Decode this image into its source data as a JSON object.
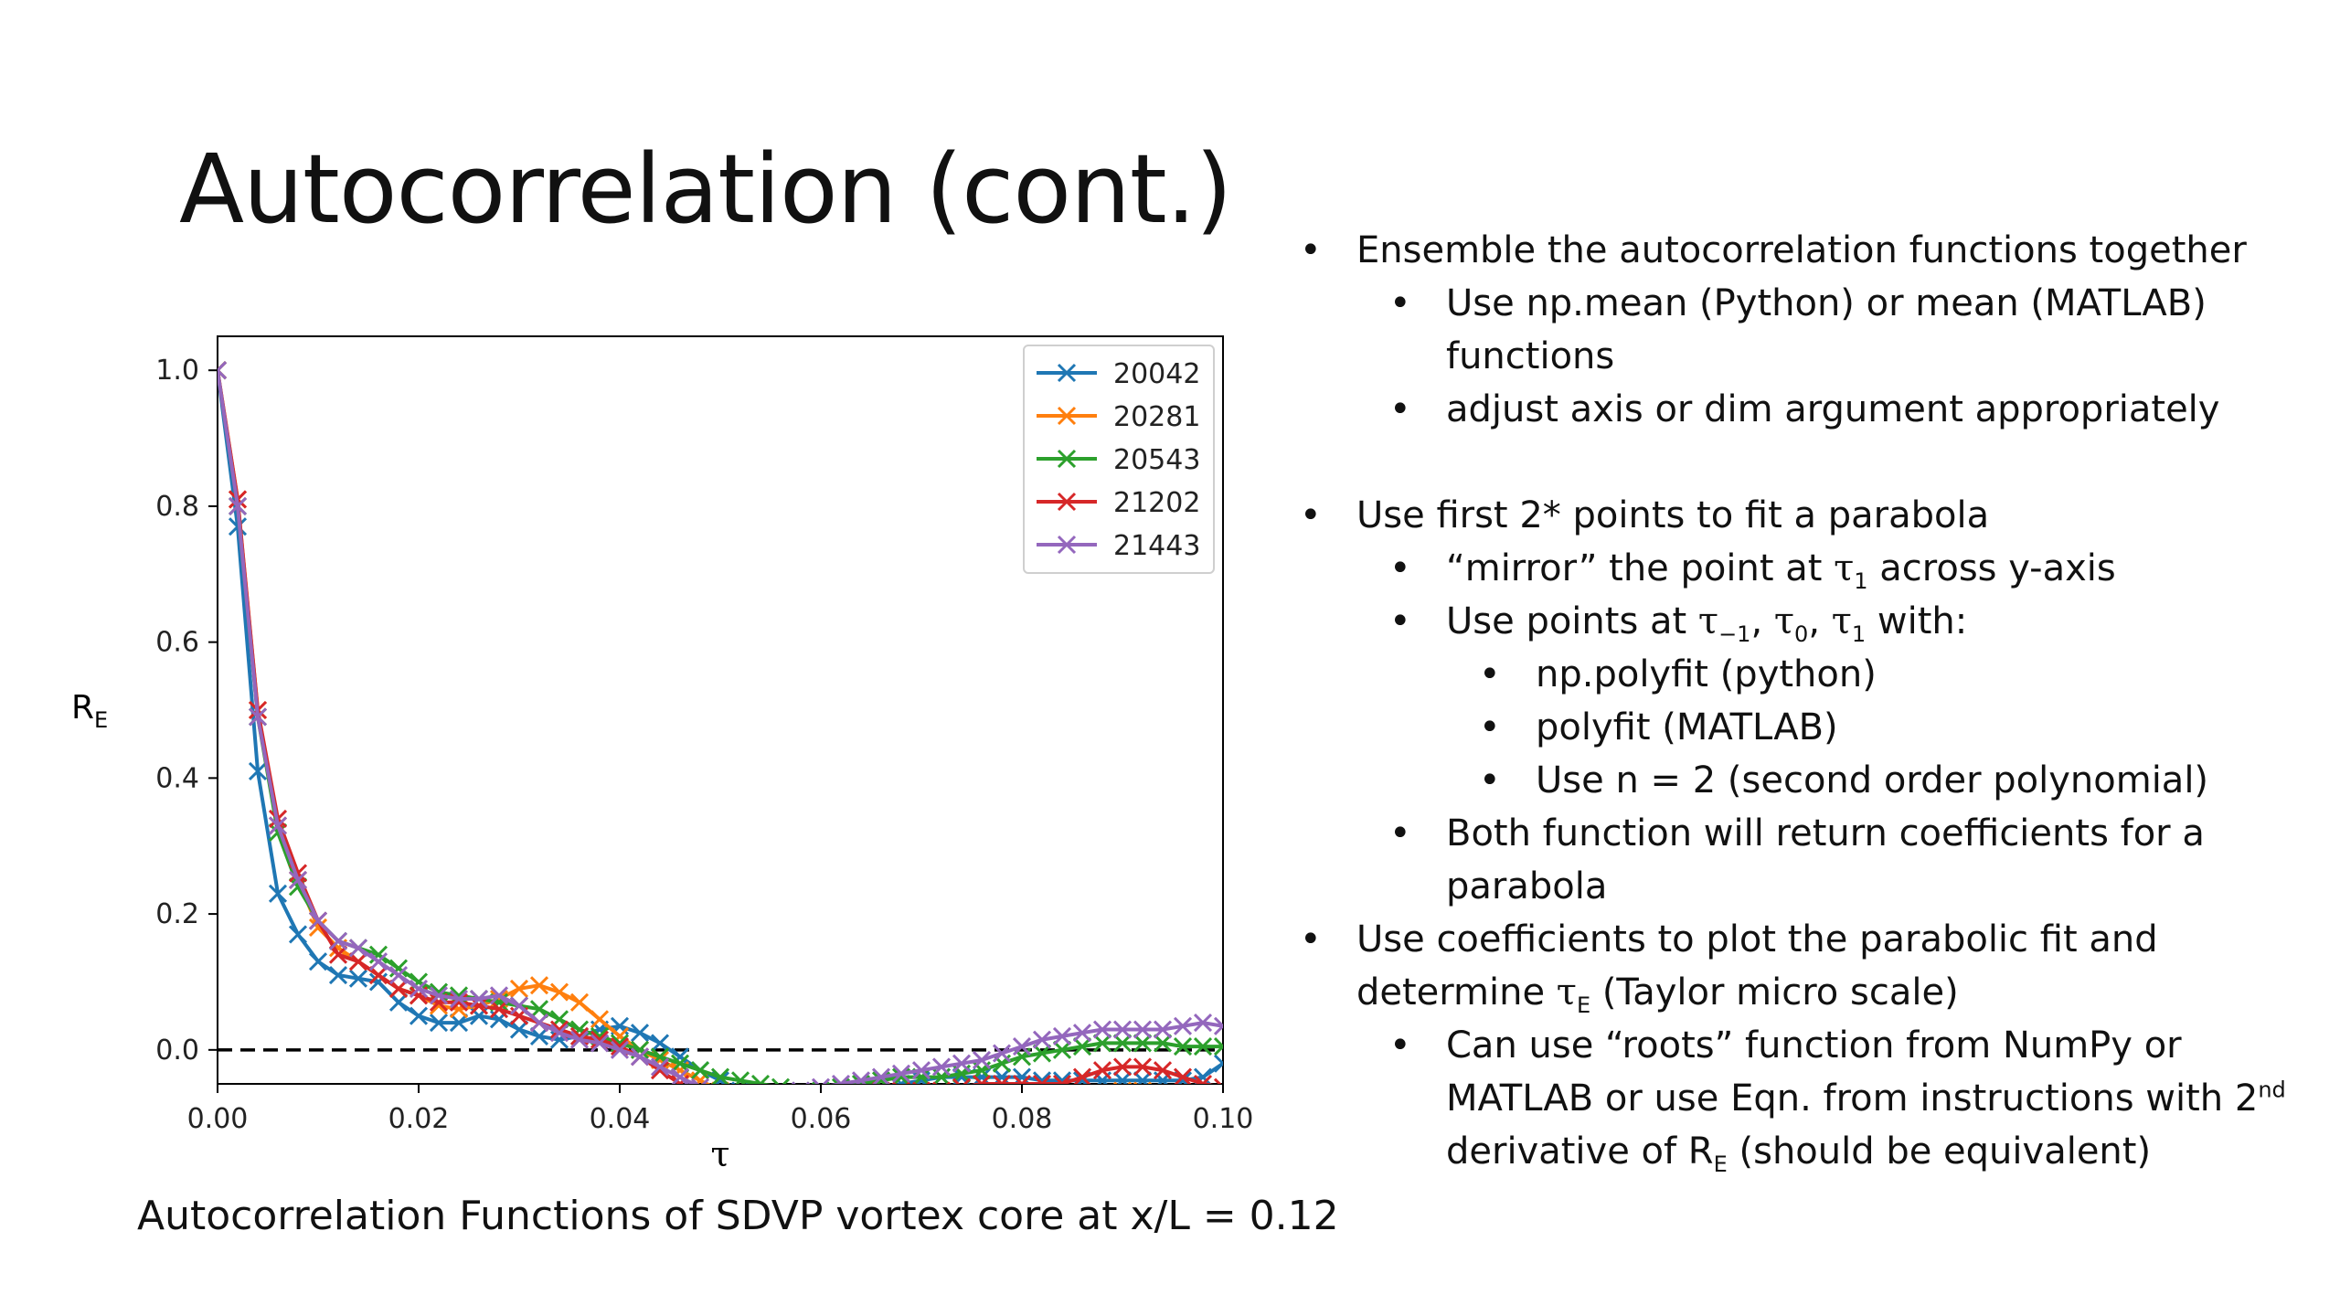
{
  "slide": {
    "title": "Autocorrelation (cont.)",
    "caption": "Autocorrelation Functions of SDVP vortex core at x/L = 0.12"
  },
  "bullets": {
    "b1": "Ensemble the autocorrelation functions together",
    "b1a": "Use np.mean (Python) or mean (MATLAB) functions",
    "b1b": "adjust axis or dim argument appropriately",
    "b2": "Use first 2* points to fit a parabola",
    "b2a_pre": "“mirror” the point at ",
    "b2a_tau": "τ",
    "b2a_sub": "1",
    "b2a_post": " across y-axis",
    "b2b_pre": "Use points at ",
    "b2b_tau1": "τ",
    "b2b_sub1": "−1",
    "b2b_sep1": ", ",
    "b2b_tau2": "τ",
    "b2b_sub2": "0",
    "b2b_sep2": ", ",
    "b2b_tau3": "τ",
    "b2b_sub3": "1",
    "b2b_post": "  with:",
    "b2b_i": "np.polyfit (python)",
    "b2b_ii": "polyfit (MATLAB)",
    "b2b_iii": "Use n = 2 (second order polynomial)",
    "b2c": "Both function will return  coefficients for a parabola",
    "b3_pre": "Use coefficients to plot the parabolic fit and determine ",
    "b3_tau": "τ",
    "b3_sub": "E",
    "b3_post": " (Taylor micro scale)",
    "b3a_pre": "Can use “roots” function from NumPy or MATLAB or use Eqn. from instructions with ",
    "b3a_sup_base": "2",
    "b3a_sup": "nd",
    "b3a_mid": " derivative of R",
    "b3a_sub": "E",
    "b3a_post": " (should be equivalent)"
  },
  "chart_data": {
    "type": "line",
    "xlabel": "τ",
    "ylabel": "R",
    "ylabel_sub": "E",
    "xlim": [
      0.0,
      0.1
    ],
    "ylim": [
      -0.05,
      1.05
    ],
    "xticks": [
      0.0,
      0.02,
      0.04,
      0.06,
      0.08,
      0.1
    ],
    "xtick_labels": [
      "0.00",
      "0.02",
      "0.04",
      "0.06",
      "0.08",
      "0.10"
    ],
    "yticks": [
      0.0,
      0.2,
      0.4,
      0.6,
      0.8,
      1.0
    ],
    "ytick_labels": [
      "0.0",
      "0.2",
      "0.4",
      "0.6",
      "0.8",
      "1.0"
    ],
    "grid": false,
    "legend_position": "top-right",
    "reference_line": {
      "y": 0.0,
      "style": "dashed",
      "color": "#000000"
    },
    "marker_step": 0.002,
    "series": [
      {
        "name": "20042",
        "color": "#1f77b4",
        "points": [
          [
            0.0,
            1.0
          ],
          [
            0.002,
            0.77
          ],
          [
            0.004,
            0.41
          ],
          [
            0.006,
            0.23
          ],
          [
            0.008,
            0.17
          ],
          [
            0.01,
            0.13
          ],
          [
            0.012,
            0.11
          ],
          [
            0.014,
            0.105
          ],
          [
            0.016,
            0.1
          ],
          [
            0.018,
            0.07
          ],
          [
            0.02,
            0.05
          ],
          [
            0.022,
            0.04
          ],
          [
            0.024,
            0.04
          ],
          [
            0.026,
            0.05
          ],
          [
            0.028,
            0.045
          ],
          [
            0.03,
            0.03
          ],
          [
            0.032,
            0.02
          ],
          [
            0.034,
            0.015
          ],
          [
            0.036,
            0.02
          ],
          [
            0.038,
            0.03
          ],
          [
            0.04,
            0.035
          ],
          [
            0.042,
            0.025
          ],
          [
            0.044,
            0.01
          ],
          [
            0.046,
            -0.01
          ],
          [
            0.048,
            -0.03
          ],
          [
            0.05,
            -0.045
          ],
          [
            0.052,
            -0.06
          ],
          [
            0.054,
            -0.07
          ],
          [
            0.056,
            -0.075
          ],
          [
            0.058,
            -0.08
          ],
          [
            0.06,
            -0.08
          ],
          [
            0.062,
            -0.075
          ],
          [
            0.064,
            -0.07
          ],
          [
            0.066,
            -0.06
          ],
          [
            0.068,
            -0.05
          ],
          [
            0.07,
            -0.045
          ],
          [
            0.072,
            -0.04
          ],
          [
            0.074,
            -0.04
          ],
          [
            0.076,
            -0.04
          ],
          [
            0.078,
            -0.04
          ],
          [
            0.08,
            -0.04
          ],
          [
            0.082,
            -0.045
          ],
          [
            0.084,
            -0.045
          ],
          [
            0.086,
            -0.045
          ],
          [
            0.088,
            -0.045
          ],
          [
            0.09,
            -0.045
          ],
          [
            0.092,
            -0.045
          ],
          [
            0.094,
            -0.045
          ],
          [
            0.096,
            -0.045
          ],
          [
            0.098,
            -0.04
          ],
          [
            0.1,
            -0.02
          ]
        ]
      },
      {
        "name": "20281",
        "color": "#ff7f0e",
        "points": [
          [
            0.0,
            1.0
          ],
          [
            0.002,
            0.81
          ],
          [
            0.004,
            0.5
          ],
          [
            0.006,
            0.33
          ],
          [
            0.008,
            0.25
          ],
          [
            0.01,
            0.18
          ],
          [
            0.012,
            0.15
          ],
          [
            0.014,
            0.13
          ],
          [
            0.016,
            0.11
          ],
          [
            0.018,
            0.09
          ],
          [
            0.02,
            0.08
          ],
          [
            0.022,
            0.065
          ],
          [
            0.024,
            0.06
          ],
          [
            0.026,
            0.065
          ],
          [
            0.028,
            0.075
          ],
          [
            0.03,
            0.09
          ],
          [
            0.032,
            0.095
          ],
          [
            0.034,
            0.085
          ],
          [
            0.036,
            0.07
          ],
          [
            0.038,
            0.045
          ],
          [
            0.04,
            0.02
          ],
          [
            0.042,
            0.0
          ],
          [
            0.044,
            -0.015
          ],
          [
            0.046,
            -0.03
          ],
          [
            0.048,
            -0.045
          ],
          [
            0.05,
            -0.06
          ],
          [
            0.052,
            -0.07
          ],
          [
            0.054,
            -0.075
          ],
          [
            0.056,
            -0.075
          ],
          [
            0.058,
            -0.08
          ],
          [
            0.06,
            -0.085
          ],
          [
            0.062,
            -0.09
          ],
          [
            0.064,
            -0.09
          ],
          [
            0.066,
            -0.085
          ],
          [
            0.068,
            -0.08
          ],
          [
            0.07,
            -0.08
          ],
          [
            0.072,
            -0.08
          ],
          [
            0.074,
            -0.08
          ],
          [
            0.076,
            -0.085
          ],
          [
            0.078,
            -0.09
          ],
          [
            0.08,
            -0.09
          ],
          [
            0.082,
            -0.085
          ],
          [
            0.084,
            -0.08
          ],
          [
            0.086,
            -0.07
          ],
          [
            0.088,
            -0.065
          ],
          [
            0.09,
            -0.06
          ],
          [
            0.092,
            -0.06
          ],
          [
            0.094,
            -0.065
          ],
          [
            0.096,
            -0.07
          ],
          [
            0.098,
            -0.07
          ],
          [
            0.1,
            -0.065
          ]
        ]
      },
      {
        "name": "20543",
        "color": "#2ca02c",
        "points": [
          [
            0.0,
            1.0
          ],
          [
            0.002,
            0.8
          ],
          [
            0.004,
            0.49
          ],
          [
            0.006,
            0.32
          ],
          [
            0.008,
            0.24
          ],
          [
            0.01,
            0.19
          ],
          [
            0.012,
            0.16
          ],
          [
            0.014,
            0.15
          ],
          [
            0.016,
            0.14
          ],
          [
            0.018,
            0.12
          ],
          [
            0.02,
            0.1
          ],
          [
            0.022,
            0.085
          ],
          [
            0.024,
            0.08
          ],
          [
            0.026,
            0.075
          ],
          [
            0.028,
            0.07
          ],
          [
            0.03,
            0.065
          ],
          [
            0.032,
            0.06
          ],
          [
            0.034,
            0.045
          ],
          [
            0.036,
            0.03
          ],
          [
            0.038,
            0.02
          ],
          [
            0.04,
            0.01
          ],
          [
            0.042,
            0.0
          ],
          [
            0.044,
            -0.01
          ],
          [
            0.046,
            -0.02
          ],
          [
            0.048,
            -0.03
          ],
          [
            0.05,
            -0.04
          ],
          [
            0.052,
            -0.045
          ],
          [
            0.054,
            -0.05
          ],
          [
            0.056,
            -0.055
          ],
          [
            0.058,
            -0.06
          ],
          [
            0.06,
            -0.06
          ],
          [
            0.062,
            -0.055
          ],
          [
            0.064,
            -0.05
          ],
          [
            0.066,
            -0.045
          ],
          [
            0.068,
            -0.04
          ],
          [
            0.07,
            -0.04
          ],
          [
            0.072,
            -0.04
          ],
          [
            0.074,
            -0.035
          ],
          [
            0.076,
            -0.03
          ],
          [
            0.078,
            -0.02
          ],
          [
            0.08,
            -0.01
          ],
          [
            0.082,
            -0.005
          ],
          [
            0.084,
            0.0
          ],
          [
            0.086,
            0.005
          ],
          [
            0.088,
            0.01
          ],
          [
            0.09,
            0.01
          ],
          [
            0.092,
            0.01
          ],
          [
            0.094,
            0.01
          ],
          [
            0.096,
            0.005
          ],
          [
            0.098,
            0.005
          ],
          [
            0.1,
            0.005
          ]
        ]
      },
      {
        "name": "21202",
        "color": "#d62728",
        "points": [
          [
            0.0,
            1.0
          ],
          [
            0.002,
            0.81
          ],
          [
            0.004,
            0.5
          ],
          [
            0.006,
            0.34
          ],
          [
            0.008,
            0.26
          ],
          [
            0.01,
            0.19
          ],
          [
            0.012,
            0.14
          ],
          [
            0.014,
            0.13
          ],
          [
            0.016,
            0.11
          ],
          [
            0.018,
            0.09
          ],
          [
            0.02,
            0.08
          ],
          [
            0.022,
            0.07
          ],
          [
            0.024,
            0.07
          ],
          [
            0.026,
            0.065
          ],
          [
            0.028,
            0.06
          ],
          [
            0.03,
            0.05
          ],
          [
            0.032,
            0.04
          ],
          [
            0.034,
            0.03
          ],
          [
            0.036,
            0.02
          ],
          [
            0.038,
            0.015
          ],
          [
            0.04,
            0.005
          ],
          [
            0.042,
            -0.01
          ],
          [
            0.044,
            -0.03
          ],
          [
            0.046,
            -0.05
          ],
          [
            0.048,
            -0.065
          ],
          [
            0.05,
            -0.07
          ],
          [
            0.052,
            -0.075
          ],
          [
            0.054,
            -0.075
          ],
          [
            0.056,
            -0.07
          ],
          [
            0.058,
            -0.07
          ],
          [
            0.06,
            -0.07
          ],
          [
            0.062,
            -0.07
          ],
          [
            0.064,
            -0.065
          ],
          [
            0.066,
            -0.06
          ],
          [
            0.068,
            -0.06
          ],
          [
            0.07,
            -0.06
          ],
          [
            0.072,
            -0.06
          ],
          [
            0.074,
            -0.055
          ],
          [
            0.076,
            -0.05
          ],
          [
            0.078,
            -0.05
          ],
          [
            0.08,
            -0.05
          ],
          [
            0.082,
            -0.05
          ],
          [
            0.084,
            -0.05
          ],
          [
            0.086,
            -0.04
          ],
          [
            0.088,
            -0.03
          ],
          [
            0.09,
            -0.025
          ],
          [
            0.092,
            -0.025
          ],
          [
            0.094,
            -0.03
          ],
          [
            0.096,
            -0.04
          ],
          [
            0.098,
            -0.05
          ],
          [
            0.1,
            -0.055
          ]
        ]
      },
      {
        "name": "21443",
        "color": "#9467bd",
        "points": [
          [
            0.0,
            1.0
          ],
          [
            0.002,
            0.8
          ],
          [
            0.004,
            0.49
          ],
          [
            0.006,
            0.33
          ],
          [
            0.008,
            0.25
          ],
          [
            0.01,
            0.19
          ],
          [
            0.012,
            0.16
          ],
          [
            0.014,
            0.15
          ],
          [
            0.016,
            0.13
          ],
          [
            0.018,
            0.11
          ],
          [
            0.02,
            0.09
          ],
          [
            0.022,
            0.08
          ],
          [
            0.024,
            0.075
          ],
          [
            0.026,
            0.075
          ],
          [
            0.028,
            0.08
          ],
          [
            0.03,
            0.065
          ],
          [
            0.032,
            0.04
          ],
          [
            0.034,
            0.025
          ],
          [
            0.036,
            0.015
          ],
          [
            0.038,
            0.01
          ],
          [
            0.04,
            0.0
          ],
          [
            0.042,
            -0.01
          ],
          [
            0.044,
            -0.025
          ],
          [
            0.046,
            -0.04
          ],
          [
            0.048,
            -0.055
          ],
          [
            0.05,
            -0.065
          ],
          [
            0.052,
            -0.07
          ],
          [
            0.054,
            -0.07
          ],
          [
            0.056,
            -0.065
          ],
          [
            0.058,
            -0.06
          ],
          [
            0.06,
            -0.055
          ],
          [
            0.062,
            -0.05
          ],
          [
            0.064,
            -0.045
          ],
          [
            0.066,
            -0.04
          ],
          [
            0.068,
            -0.035
          ],
          [
            0.07,
            -0.03
          ],
          [
            0.072,
            -0.025
          ],
          [
            0.074,
            -0.02
          ],
          [
            0.076,
            -0.015
          ],
          [
            0.078,
            -0.005
          ],
          [
            0.08,
            0.005
          ],
          [
            0.082,
            0.015
          ],
          [
            0.084,
            0.02
          ],
          [
            0.086,
            0.025
          ],
          [
            0.088,
            0.03
          ],
          [
            0.09,
            0.03
          ],
          [
            0.092,
            0.03
          ],
          [
            0.094,
            0.03
          ],
          [
            0.096,
            0.035
          ],
          [
            0.098,
            0.04
          ],
          [
            0.1,
            0.035
          ]
        ]
      }
    ]
  }
}
